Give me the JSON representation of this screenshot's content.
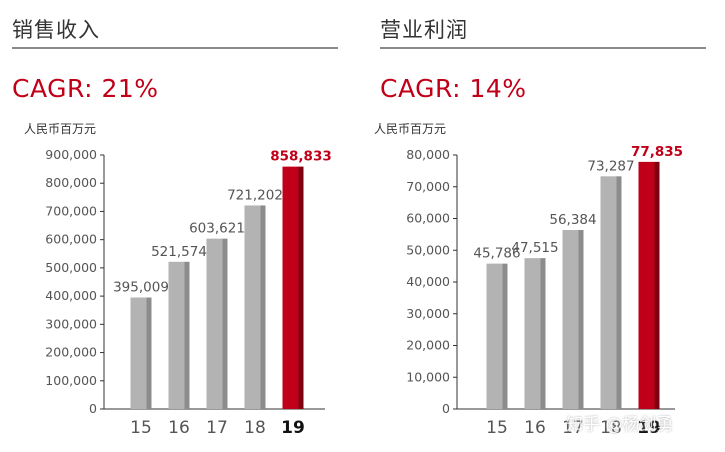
{
  "watermark": "知乎 @杨剑勇",
  "colors": {
    "accent": "#c00018",
    "bar": "#b3b3b3",
    "bar_side": "#8c8c8c",
    "accent_side": "#7e0010"
  },
  "chart_data": [
    {
      "type": "bar",
      "title": "销售收入",
      "subtitle": "CAGR: 21%",
      "ylabel": "人民币百万元",
      "categories": [
        "15",
        "16",
        "17",
        "18",
        "19"
      ],
      "values": [
        395009,
        521574,
        603621,
        721202,
        858833
      ],
      "value_labels": [
        "395,009",
        "521,574",
        "603,621",
        "721,202",
        "858,833"
      ],
      "highlight_index": 4,
      "ylim": [
        0,
        900000
      ],
      "yticks": [
        0,
        100000,
        200000,
        300000,
        400000,
        500000,
        600000,
        700000,
        800000,
        900000
      ],
      "ytick_labels": [
        "0",
        "100,000",
        "200,000",
        "300,000",
        "400,000",
        "500,000",
        "600,000",
        "700,000",
        "800,000",
        "900,000"
      ],
      "grid": false
    },
    {
      "type": "bar",
      "title": "营业利润",
      "subtitle": "CAGR: 14%",
      "ylabel": "人民币百万元",
      "categories": [
        "15",
        "16",
        "17",
        "18",
        "19"
      ],
      "values": [
        45786,
        47515,
        56384,
        73287,
        77835
      ],
      "value_labels": [
        "45,786",
        "47,515",
        "56,384",
        "73,287",
        "77,835"
      ],
      "highlight_index": 4,
      "ylim": [
        0,
        80000
      ],
      "yticks": [
        0,
        10000,
        20000,
        30000,
        40000,
        50000,
        60000,
        70000,
        80000
      ],
      "ytick_labels": [
        "0",
        "10,000",
        "20,000",
        "30,000",
        "40,000",
        "50,000",
        "60,000",
        "70,000",
        "80,000"
      ],
      "grid": false
    }
  ]
}
